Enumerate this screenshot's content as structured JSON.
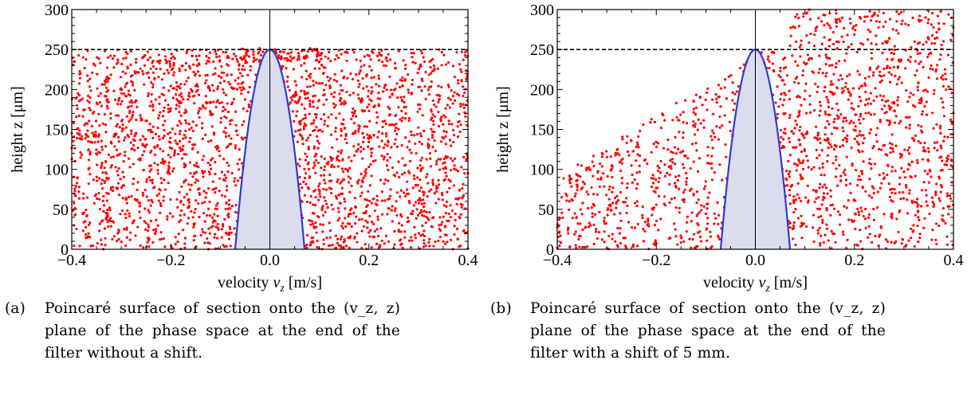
{
  "chart_data": [
    {
      "type": "scatter",
      "xlabel": "velocity v_z [m/s]",
      "xlabel_main": "velocity ",
      "xlabel_var": "v",
      "xlabel_sub": "z",
      "xlabel_unit": " [m/s]",
      "ylabel": "height z [μm]",
      "xlim": [
        -0.4,
        0.4
      ],
      "ylim": [
        0,
        300
      ],
      "xticks": [
        "-0.4",
        "-0.2",
        "0.0",
        "0.2",
        "0.4"
      ],
      "yticks": [
        "0",
        "50",
        "100",
        "150",
        "200",
        "250",
        "300"
      ],
      "reference_line_y": 250,
      "parabola": {
        "apex_y": 250,
        "roots_x": [
          -0.07,
          0.07
        ]
      },
      "point_color": "#ff0000",
      "curve_color": "#2d3bd1",
      "fill_color": "#dcdcef",
      "points_description": "dense uniform cloud over 0–250 μm across the full velocity range, with extra density near z≈250 at v≈0"
    },
    {
      "type": "scatter",
      "xlabel": "velocity v_z [m/s]",
      "xlabel_main": "velocity ",
      "xlabel_var": "v",
      "xlabel_sub": "z",
      "xlabel_unit": " [m/s]",
      "ylabel": "height z [μm]",
      "xlim": [
        -0.4,
        0.4
      ],
      "ylim": [
        0,
        300
      ],
      "xticks": [
        "-0.4",
        "-0.2",
        "0.0",
        "0.2",
        "0.4"
      ],
      "yticks": [
        "0",
        "50",
        "100",
        "150",
        "200",
        "250",
        "300"
      ],
      "reference_line_y": 250,
      "parabola": {
        "apex_y": 250,
        "roots_x": [
          -0.07,
          0.07
        ]
      },
      "point_color": "#ff0000",
      "curve_color": "#2d3bd1",
      "fill_color": "#dcdcef",
      "points_description": "sparse cloud on the negative side rising toward positive velocities; dense band up to 300 μm for v > 0"
    }
  ],
  "captions": {
    "a": {
      "label": "(a)",
      "text": "Poincaré surface of section onto the (v_z, z) plane of the phase space at the end of the filter without a shift."
    },
    "b": {
      "label": "(b)",
      "text": "Poincaré surface of section onto the (v_z, z) plane of the phase space at the end of the filter with a shift of 5 mm."
    }
  }
}
